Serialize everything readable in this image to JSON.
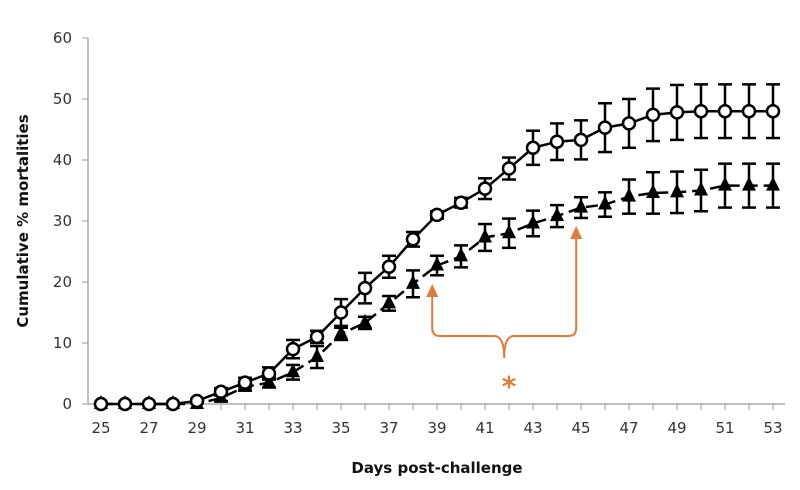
{
  "chart_data": {
    "type": "line",
    "xlabel": "Days post-challenge",
    "ylabel": "Cumulative % mortalities",
    "xlim": [
      25,
      53
    ],
    "ylim": [
      0,
      60
    ],
    "x_ticks": [
      25,
      27,
      29,
      31,
      33,
      35,
      37,
      39,
      41,
      43,
      45,
      47,
      49,
      51,
      53
    ],
    "y_ticks": [
      0,
      10,
      20,
      30,
      40,
      50,
      60
    ],
    "grid": false,
    "x": [
      25,
      26,
      27,
      28,
      29,
      30,
      31,
      32,
      33,
      34,
      35,
      36,
      37,
      38,
      39,
      40,
      41,
      42,
      43,
      44,
      45,
      46,
      47,
      48,
      49,
      50,
      51,
      52,
      53
    ],
    "series": [
      {
        "marker": "open-circle",
        "line": "solid",
        "color": "#000000",
        "values": [
          0,
          0,
          0,
          0,
          0.5,
          2,
          3.5,
          5,
          9,
          11,
          15,
          19,
          22.5,
          27,
          31,
          33,
          35.3,
          38.6,
          42,
          43,
          43.3,
          45.3,
          46,
          47.4,
          47.8,
          48,
          48,
          48,
          48
        ],
        "errors": [
          0,
          0,
          0,
          0,
          0.3,
          0.6,
          0.8,
          1,
          1.5,
          1,
          2.2,
          2.5,
          1.8,
          1.2,
          0.6,
          0.8,
          1.7,
          1.8,
          2.8,
          3,
          3.2,
          4,
          4,
          4.3,
          4.5,
          4.4,
          4.4,
          4.4,
          4.4
        ]
      },
      {
        "marker": "filled-triangle",
        "line": "dashed",
        "color": "#000000",
        "values": [
          0,
          0,
          0,
          0,
          0,
          1,
          2.8,
          3.5,
          5.2,
          7.7,
          11.5,
          13.3,
          16.5,
          19.7,
          22.7,
          24.2,
          27.3,
          28,
          29.6,
          30.8,
          32.2,
          32.7,
          34,
          34.6,
          34.7,
          35,
          35.8,
          35.8,
          35.8
        ],
        "errors": [
          0,
          0,
          0,
          0,
          0,
          0.5,
          0.6,
          0.8,
          1.2,
          1.8,
          1,
          1,
          1.2,
          2.2,
          1.6,
          1.8,
          2.2,
          2.4,
          2.1,
          1.8,
          1.7,
          2,
          2.8,
          3.4,
          3.4,
          3.4,
          3.6,
          3.6,
          3.6
        ]
      }
    ],
    "annotations": [
      {
        "type": "bracket",
        "from_x": 38.8,
        "to_x": 44.8,
        "text": "*",
        "color": "#E07B39"
      }
    ]
  }
}
